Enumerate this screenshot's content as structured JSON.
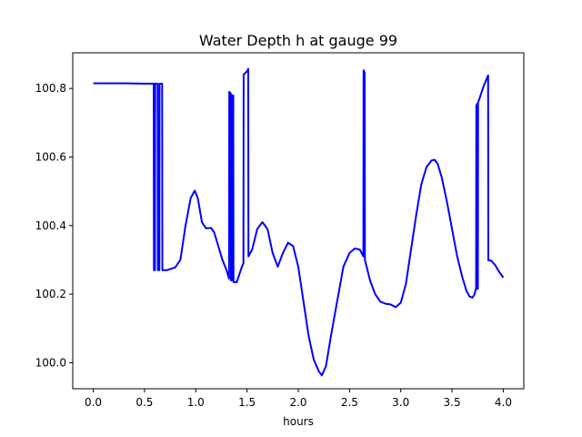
{
  "chart_data": {
    "type": "line",
    "title": "Water Depth h at gauge 99",
    "xlabel": "hours",
    "ylabel": "",
    "xlim": [
      -0.2,
      4.2
    ],
    "ylim": [
      99.924,
      100.904
    ],
    "xticks": [
      0.0,
      0.5,
      1.0,
      1.5,
      2.0,
      2.5,
      3.0,
      3.5,
      4.0
    ],
    "xtick_labels": [
      "0.0",
      "0.5",
      "1.0",
      "1.5",
      "2.0",
      "2.5",
      "3.0",
      "3.5",
      "4.0"
    ],
    "yticks": [
      100.0,
      100.2,
      100.4,
      100.6,
      100.8
    ],
    "ytick_labels": [
      "100.0",
      "100.2",
      "100.4",
      "100.6",
      "100.8"
    ],
    "grid": false,
    "legend": "none",
    "series": [
      {
        "color": "#0000ff",
        "points": [
          [
            0.0,
            100.815
          ],
          [
            0.3,
            100.815
          ],
          [
            0.5,
            100.814
          ],
          [
            0.59,
            100.814
          ],
          [
            0.592,
            100.27
          ],
          [
            0.602,
            100.27
          ],
          [
            0.604,
            100.814
          ],
          [
            0.628,
            100.814
          ],
          [
            0.63,
            100.27
          ],
          [
            0.645,
            100.27
          ],
          [
            0.647,
            100.814
          ],
          [
            0.672,
            100.814
          ],
          [
            0.674,
            100.27
          ],
          [
            0.72,
            100.27
          ],
          [
            0.8,
            100.278
          ],
          [
            0.85,
            100.3
          ],
          [
            0.9,
            100.4
          ],
          [
            0.95,
            100.48
          ],
          [
            0.99,
            100.502
          ],
          [
            1.02,
            100.48
          ],
          [
            1.06,
            100.41
          ],
          [
            1.1,
            100.392
          ],
          [
            1.15,
            100.393
          ],
          [
            1.18,
            100.38
          ],
          [
            1.22,
            100.34
          ],
          [
            1.26,
            100.3
          ],
          [
            1.3,
            100.27
          ],
          [
            1.325,
            100.245
          ],
          [
            1.327,
            100.79
          ],
          [
            1.342,
            100.785
          ],
          [
            1.344,
            100.24
          ],
          [
            1.352,
            100.24
          ],
          [
            1.354,
            100.78
          ],
          [
            1.366,
            100.78
          ],
          [
            1.368,
            100.235
          ],
          [
            1.4,
            100.235
          ],
          [
            1.45,
            100.28
          ],
          [
            1.465,
            100.29
          ],
          [
            1.467,
            100.84
          ],
          [
            1.5,
            100.85
          ],
          [
            1.512,
            100.857
          ],
          [
            1.514,
            100.31
          ],
          [
            1.55,
            100.33
          ],
          [
            1.6,
            100.39
          ],
          [
            1.65,
            100.41
          ],
          [
            1.7,
            100.39
          ],
          [
            1.75,
            100.32
          ],
          [
            1.8,
            100.28
          ],
          [
            1.85,
            100.32
          ],
          [
            1.9,
            100.35
          ],
          [
            1.95,
            100.34
          ],
          [
            2.0,
            100.28
          ],
          [
            2.05,
            100.18
          ],
          [
            2.1,
            100.08
          ],
          [
            2.15,
            100.01
          ],
          [
            2.2,
            99.975
          ],
          [
            2.23,
            99.963
          ],
          [
            2.27,
            99.99
          ],
          [
            2.32,
            100.08
          ],
          [
            2.38,
            100.18
          ],
          [
            2.44,
            100.28
          ],
          [
            2.5,
            100.32
          ],
          [
            2.55,
            100.333
          ],
          [
            2.6,
            100.33
          ],
          [
            2.635,
            100.31
          ],
          [
            2.637,
            100.853
          ],
          [
            2.642,
            100.85
          ],
          [
            2.648,
            100.845
          ],
          [
            2.65,
            100.3
          ],
          [
            2.7,
            100.24
          ],
          [
            2.75,
            100.2
          ],
          [
            2.8,
            100.178
          ],
          [
            2.85,
            100.172
          ],
          [
            2.9,
            100.17
          ],
          [
            2.95,
            100.162
          ],
          [
            3.0,
            100.175
          ],
          [
            3.05,
            100.23
          ],
          [
            3.1,
            100.33
          ],
          [
            3.15,
            100.43
          ],
          [
            3.2,
            100.52
          ],
          [
            3.25,
            100.57
          ],
          [
            3.3,
            100.59
          ],
          [
            3.33,
            100.592
          ],
          [
            3.36,
            100.58
          ],
          [
            3.4,
            100.54
          ],
          [
            3.45,
            100.47
          ],
          [
            3.5,
            100.39
          ],
          [
            3.55,
            100.31
          ],
          [
            3.6,
            100.25
          ],
          [
            3.64,
            100.21
          ],
          [
            3.67,
            100.193
          ],
          [
            3.7,
            100.19
          ],
          [
            3.72,
            100.2
          ],
          [
            3.735,
            100.22
          ],
          [
            3.737,
            100.75
          ],
          [
            3.745,
            100.755
          ],
          [
            3.747,
            100.215
          ],
          [
            3.752,
            100.215
          ],
          [
            3.754,
            100.76
          ],
          [
            3.762,
            100.765
          ],
          [
            3.8,
            100.8
          ],
          [
            3.84,
            100.83
          ],
          [
            3.852,
            100.838
          ],
          [
            3.854,
            100.298
          ],
          [
            3.88,
            100.298
          ],
          [
            3.92,
            100.285
          ],
          [
            3.96,
            100.265
          ],
          [
            4.0,
            100.248
          ]
        ]
      }
    ]
  }
}
